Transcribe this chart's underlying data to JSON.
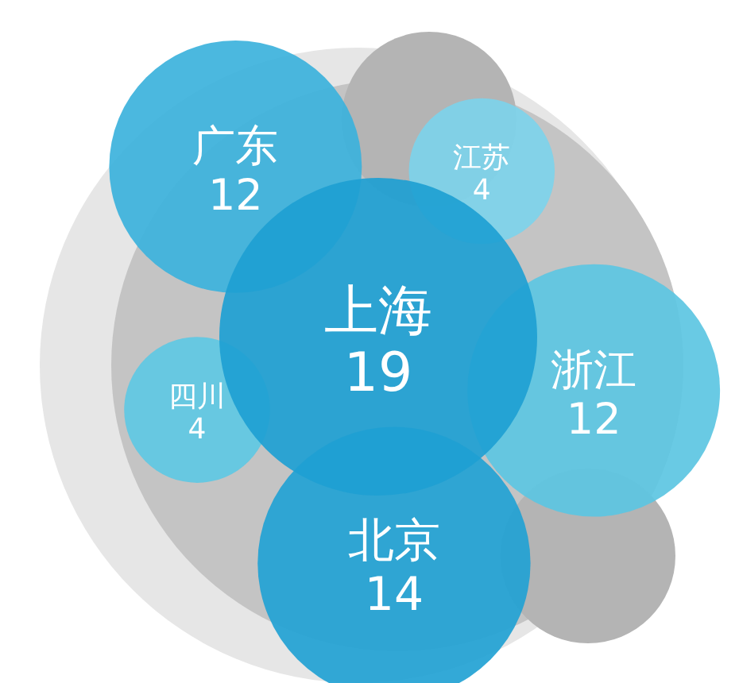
{
  "chart_data": {
    "type": "other",
    "categories": [
      "上海",
      "广东",
      "江苏",
      "浙江",
      "北京",
      "四川"
    ],
    "values": [
      19,
      12,
      4,
      12,
      14,
      4
    ],
    "colors": [
      "#1e9fd3",
      "#3cb2dc",
      "#7dd3ea",
      "#5cc5e2",
      "#22a2d4",
      "#5ec8e3"
    ],
    "data_labels": true
  }
}
